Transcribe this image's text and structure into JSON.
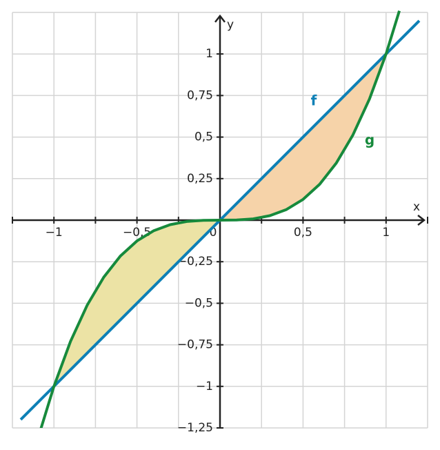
{
  "chart_data": {
    "type": "line",
    "axis_labels": {
      "x": "x",
      "y": "y"
    },
    "xlim": [
      -1.25,
      1.25
    ],
    "ylim": [
      -1.25,
      1.25
    ],
    "xticks": [
      {
        "value": -1,
        "label": "−1"
      },
      {
        "value": -0.5,
        "label": "−0,5"
      },
      0,
      {
        "value": 0.5,
        "label": "0,5"
      },
      1
    ],
    "yticks": [
      1,
      {
        "value": 0.75,
        "label": "0,75"
      },
      {
        "value": 0.5,
        "label": "0,5"
      },
      {
        "value": 0.25,
        "label": "0,25"
      },
      {
        "value": -0.25,
        "label": "−0,25"
      },
      {
        "value": -0.5,
        "label": "−0,5"
      },
      {
        "value": -0.75,
        "label": "−0,75"
      },
      {
        "value": -1,
        "label": "−1"
      },
      {
        "value": -1.25,
        "label": "−1,25"
      }
    ],
    "xgrid": [
      -1.25,
      -1,
      -0.75,
      -0.5,
      -0.25,
      0.25,
      0.5,
      0.75,
      1,
      1.25
    ],
    "ygrid": [
      -1.25,
      -1,
      -0.75,
      -0.5,
      -0.25,
      0.25,
      0.5,
      0.75,
      1,
      1.25
    ],
    "grid": true,
    "series": [
      {
        "name": "f",
        "color": "#0e80b6",
        "x": [
          -1.2,
          1.2
        ],
        "values": [
          -1.2,
          1.2
        ]
      },
      {
        "name": "g",
        "color": "#178a3c",
        "x": [
          -1.08,
          -1,
          -0.9,
          -0.8,
          -0.7,
          -0.6,
          -0.5,
          -0.4,
          -0.3,
          -0.2,
          -0.1,
          0,
          0.1,
          0.2,
          0.3,
          0.4,
          0.5,
          0.6,
          0.7,
          0.8,
          0.9,
          1,
          1.08
        ],
        "values": [
          -1.2597,
          -1,
          -0.729,
          -0.512,
          -0.343,
          -0.216,
          -0.125,
          -0.064,
          -0.027,
          -0.008,
          -0.001,
          0,
          0.001,
          0.008,
          0.027,
          0.064,
          0.125,
          0.216,
          0.343,
          0.512,
          0.729,
          1,
          1.2597
        ]
      }
    ],
    "areas": [
      {
        "from": -1,
        "to": 0,
        "color": "#ece3a5"
      },
      {
        "from": 0,
        "to": 1,
        "color": "#f6d3a9"
      }
    ]
  }
}
